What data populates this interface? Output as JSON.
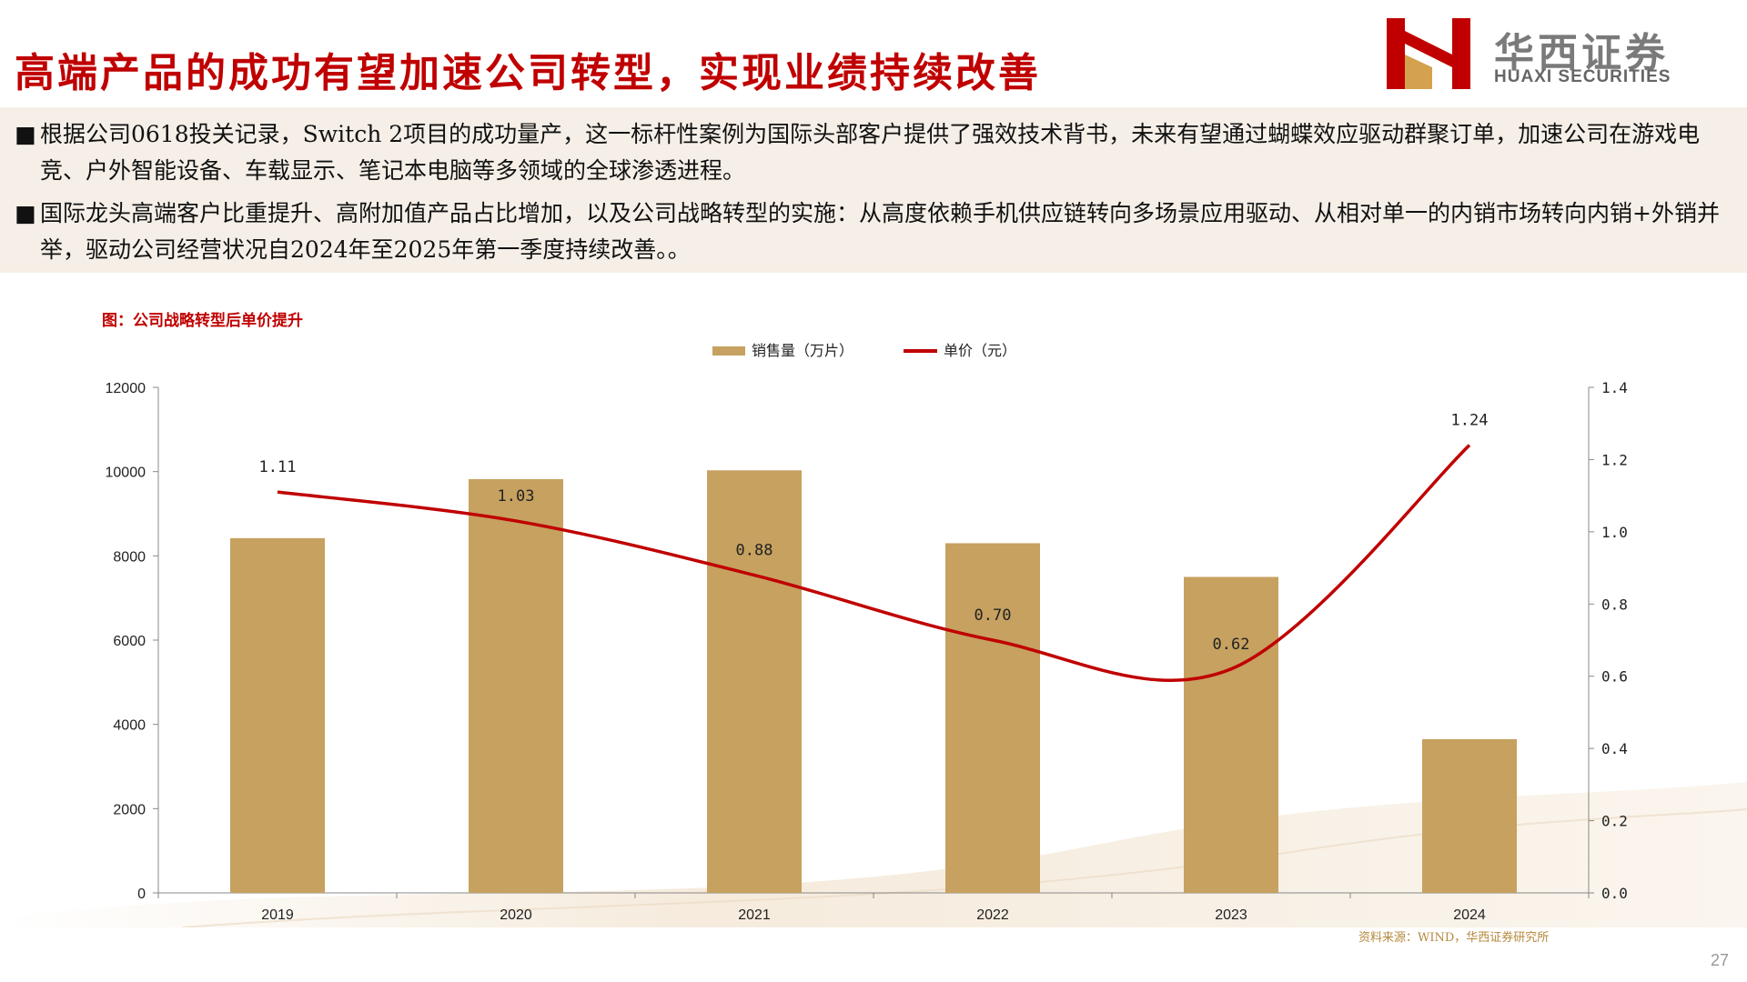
{
  "header": {
    "title": "高端产品的成功有望加速公司转型，实现业绩持续改善",
    "logo_cn": "华西证券",
    "logo_en": "HUAXI SECURITIES"
  },
  "bullets": [
    {
      "marker": "■",
      "text": "根据公司0618投关记录，Switch 2项目的成功量产，这一标杆性案例为国际头部客户提供了强效技术背书，未来有望通过蝴蝶效应驱动群聚订单，加速公司在游戏电竞、户外智能设备、车载显示、笔记本电脑等多领域的全球渗透进程。"
    },
    {
      "marker": "■",
      "text": "国际龙头高端客户比重提升、高附加值产品占比增加，以及公司战略转型的实施：从高度依赖手机供应链转向多场景应用驱动、从相对单一的内销市场转向内销+外销并举，驱动公司经营状况自2024年至2025年第一季度持续改善。。"
    }
  ],
  "figure_title": "图：公司战略转型后单价提升",
  "source_note": "资料来源：WIND，华西证券研究所",
  "page_number": "27",
  "colors": {
    "bar": "#c6a160",
    "line": "#c00000",
    "title": "#c00000",
    "panel": "#f5efe7"
  },
  "chart_data": {
    "type": "bar+line",
    "categories": [
      "2019",
      "2020",
      "2021",
      "2022",
      "2023",
      "2024"
    ],
    "series": [
      {
        "name": "销售量（万片）",
        "type": "bar",
        "axis": "left",
        "values": [
          8420,
          9820,
          10030,
          8300,
          7500,
          3650
        ]
      },
      {
        "name": "单价（元）",
        "type": "line",
        "axis": "right",
        "smooth": true,
        "values": [
          1.11,
          1.03,
          0.88,
          0.7,
          0.62,
          1.24
        ],
        "labels": [
          "1.11",
          "1.03",
          "0.88",
          "0.70",
          "0.62",
          "1.24"
        ]
      }
    ],
    "y_left": {
      "min": 0,
      "max": 12000,
      "ticks": [
        "0",
        "2000",
        "4000",
        "6000",
        "8000",
        "10000",
        "12000"
      ]
    },
    "y_right": {
      "min": 0,
      "max": 1.4,
      "ticks": [
        "0.0",
        "0.2",
        "0.4",
        "0.6",
        "0.8",
        "1.0",
        "1.2",
        "1.4"
      ]
    },
    "legend": "top-center",
    "grid": false
  }
}
